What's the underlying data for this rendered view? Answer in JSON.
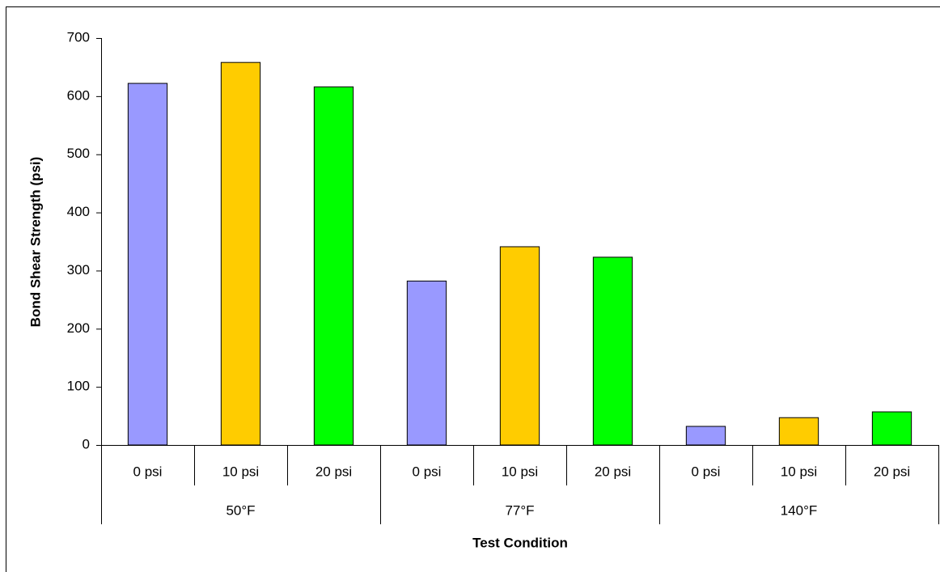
{
  "chart_data": {
    "type": "bar",
    "categories": [
      "0 psi",
      "10 psi",
      "20 psi",
      "0 psi",
      "10 psi",
      "20 psi",
      "0 psi",
      "10 psi",
      "20 psi"
    ],
    "groups": [
      "50°F",
      "77°F",
      "140°F"
    ],
    "values": [
      622,
      658,
      616,
      282,
      341,
      323,
      32,
      47,
      57
    ],
    "colors": [
      "#9999ff",
      "#ffcc00",
      "#00ff00",
      "#9999ff",
      "#ffcc00",
      "#00ff00",
      "#9999ff",
      "#ffcc00",
      "#00ff00"
    ],
    "ylim": [
      0,
      700
    ],
    "yticks": [
      0,
      100,
      200,
      300,
      400,
      500,
      600,
      700
    ],
    "x_label": "Test Condition",
    "y_label": "Bond Shear Strength (psi)"
  }
}
